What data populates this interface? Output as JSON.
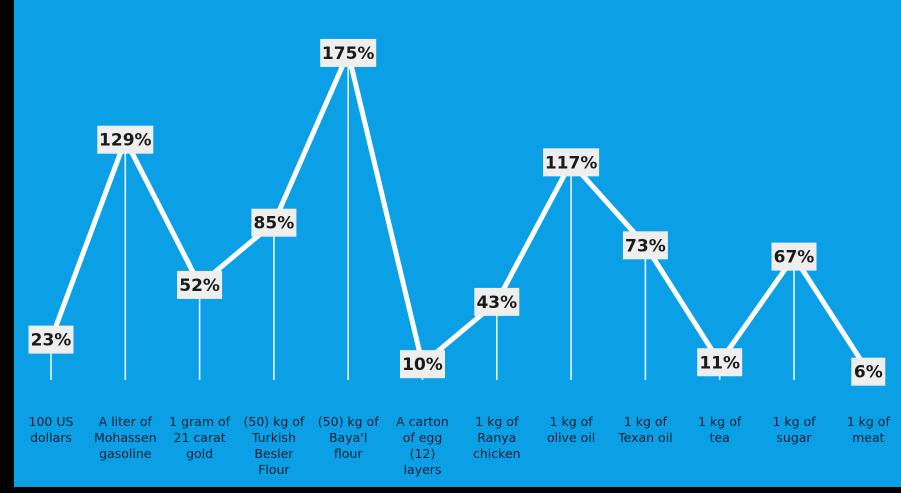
{
  "colors": {
    "background": "#0ba0e6",
    "frame": "#000000",
    "line": "#ffffff",
    "label_box": "#eeeeee",
    "label_text": "#1a1a1a"
  },
  "chart_data": {
    "type": "line",
    "title": "",
    "xlabel": "",
    "ylabel": "",
    "ylim": [
      0,
      180
    ],
    "grid": false,
    "legend": "none",
    "categories": [
      "100 US dollars",
      "A liter of Mohassen gasoline",
      "1 gram of 21 carat gold",
      "(50) kg of Turkish Besler Flour",
      "(50) kg of Baya'I flour",
      "A carton of egg (12) layers",
      "1 kg of Ranya chicken",
      "1 kg of olive oil",
      "1 kg of Texan oil",
      "1 kg of tea",
      "1 kg of sugar",
      "1 kg of meat"
    ],
    "category_lines": [
      [
        "100  US",
        "dollars"
      ],
      [
        "A liter of",
        "Mohassen",
        "gasoline"
      ],
      [
        "1 gram of",
        "21 carat",
        "gold"
      ],
      [
        "(50) kg of",
        "Turkish",
        "Besler",
        "Flour"
      ],
      [
        "(50) kg of",
        "Baya'I",
        "flour"
      ],
      [
        "A carton",
        "of egg",
        "(12)",
        "layers"
      ],
      [
        "1 kg of",
        "Ranya",
        "chicken"
      ],
      [
        "1 kg of",
        "olive oil"
      ],
      [
        "1 kg of",
        "Texan oil"
      ],
      [
        "1 kg of",
        "tea"
      ],
      [
        "1 kg of",
        "sugar"
      ],
      [
        "1 kg of",
        "meat"
      ]
    ],
    "values": [
      23,
      129,
      52,
      85,
      175,
      10,
      43,
      117,
      73,
      11,
      67,
      6
    ],
    "data_labels": [
      "23%",
      "129%",
      "52%",
      "85%",
      "175%",
      "10%",
      "43%",
      "117%",
      "73%",
      "11%",
      "67%",
      "6%"
    ]
  }
}
